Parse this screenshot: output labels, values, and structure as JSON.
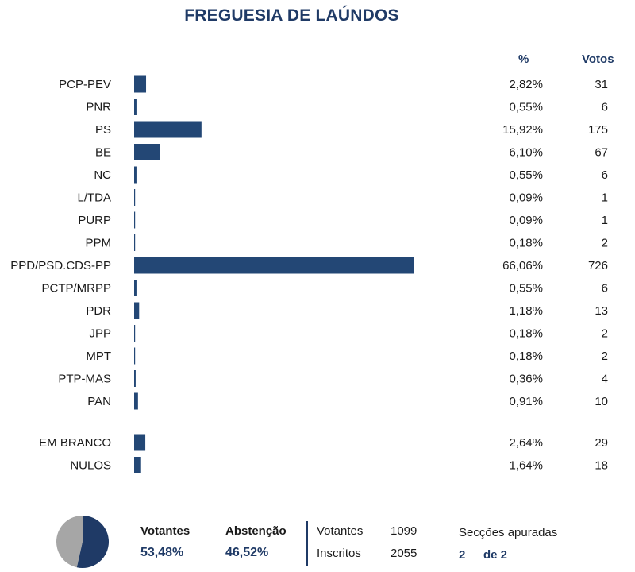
{
  "title": "FREGUESIA DE LAÚNDOS",
  "headers": {
    "pct": "%",
    "votes": "Votos"
  },
  "chart_data": {
    "type": "bar",
    "orientation": "horizontal",
    "title": "FREGUESIA DE LAÚNDOS",
    "categories": [
      "PCP-PEV",
      "PNR",
      "PS",
      "BE",
      "NC",
      "L/TDA",
      "PURP",
      "PPM",
      "PPD/PSD.CDS-PP",
      "PCTP/MRPP",
      "PDR",
      "JPP",
      "MPT",
      "PTP-MAS",
      "PAN"
    ],
    "values": [
      2.82,
      0.55,
      15.92,
      6.1,
      0.55,
      0.09,
      0.09,
      0.18,
      66.06,
      0.55,
      1.18,
      0.18,
      0.18,
      0.36,
      0.91
    ],
    "pct_labels": [
      "2,82%",
      "0,55%",
      "15,92%",
      "6,10%",
      "0,55%",
      "0,09%",
      "0,09%",
      "0,18%",
      "66,06%",
      "0,55%",
      "1,18%",
      "0,18%",
      "0,18%",
      "0,36%",
      "0,91%"
    ],
    "votes": [
      "31",
      "6",
      "175",
      "67",
      "6",
      "1",
      "1",
      "2",
      "726",
      "6",
      "13",
      "2",
      "2",
      "4",
      "10"
    ],
    "extra_categories": [
      "EM BRANCO",
      "NULOS"
    ],
    "extra_values": [
      2.64,
      1.64
    ],
    "extra_pct_labels": [
      "2,64%",
      "1,64%"
    ],
    "extra_votes": [
      "29",
      "18"
    ],
    "xlim": [
      0,
      66.06
    ],
    "colors": {
      "bar": "#234775"
    }
  },
  "summary": {
    "pie": {
      "votantes": 53.48,
      "abstencao": 46.52,
      "colors": {
        "votantes": "#1f3a66",
        "abstencao": "#a6a6a6"
      }
    },
    "votantes_label": "Votantes",
    "votantes_pct": "53,48%",
    "abstencao_label": "Abstenção",
    "abstencao_pct": "46,52%",
    "votantes_count_label": "Votantes",
    "votantes_count": "1099",
    "inscritos_label": "Inscritos",
    "inscritos_count": "2055",
    "seccoes_label": "Secções apuradas",
    "seccoes_done": "2",
    "seccoes_total": "de 2"
  }
}
